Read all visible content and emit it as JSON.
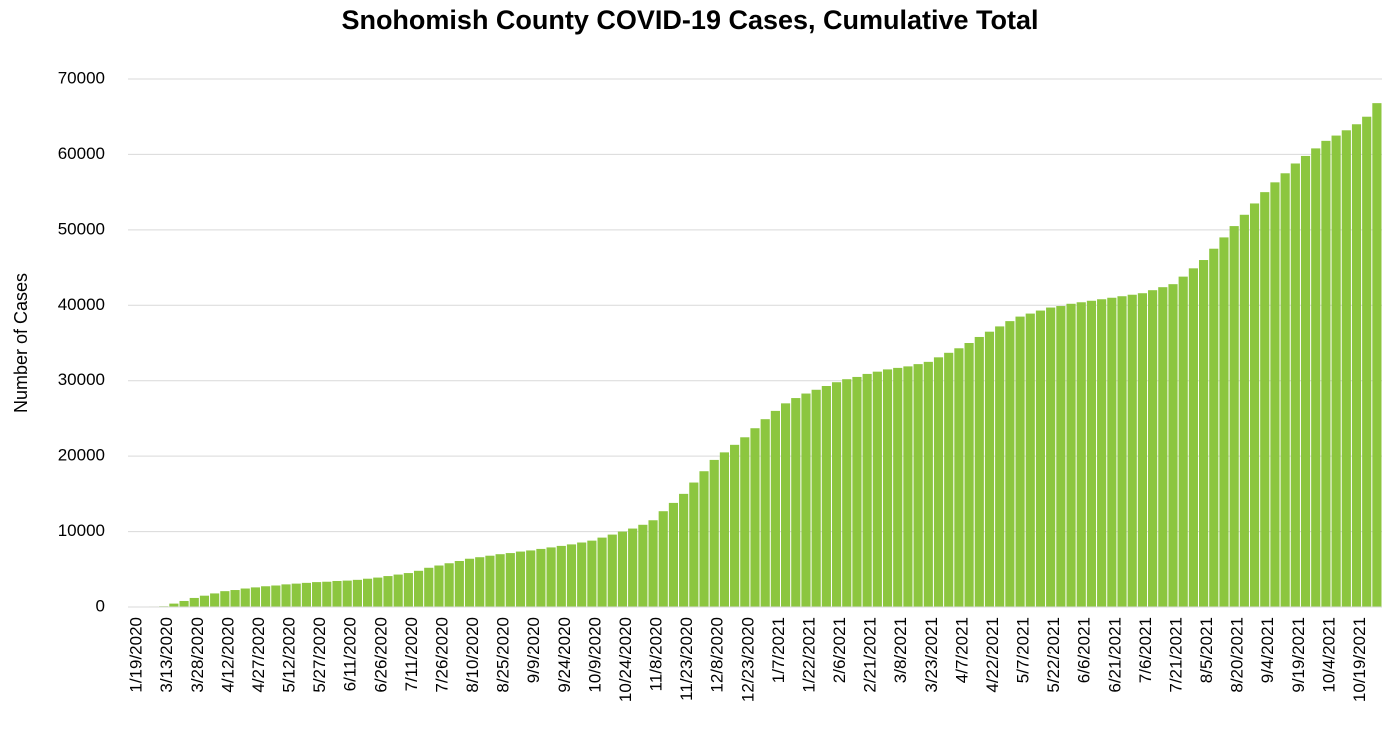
{
  "chart_data": {
    "type": "bar",
    "title": "Snohomish County COVID-19 Cases, Cumulative Total",
    "y_label": "Number of Cases",
    "color": "#8cc63f",
    "grid": true,
    "ylim": [
      0,
      70000
    ],
    "yticks": [
      0,
      10000,
      20000,
      30000,
      40000,
      50000,
      60000,
      70000
    ],
    "categories": [
      "1/19/2020",
      null,
      null,
      "3/13/2020",
      null,
      null,
      "3/28/2020",
      null,
      null,
      "4/12/2020",
      null,
      null,
      "4/27/2020",
      null,
      null,
      "5/12/2020",
      null,
      null,
      "5/27/2020",
      null,
      null,
      "6/11/2020",
      null,
      null,
      "6/26/2020",
      null,
      null,
      "7/11/2020",
      null,
      null,
      "7/26/2020",
      null,
      null,
      "8/10/2020",
      null,
      null,
      "8/25/2020",
      null,
      null,
      "9/9/2020",
      null,
      null,
      "9/24/2020",
      null,
      null,
      "10/9/2020",
      null,
      null,
      "10/24/2020",
      null,
      null,
      "11/8/2020",
      null,
      null,
      "11/23/2020",
      null,
      null,
      "12/8/2020",
      null,
      null,
      "12/23/2020",
      null,
      null,
      "1/7/2021",
      null,
      null,
      "1/22/2021",
      null,
      null,
      "2/6/2021",
      null,
      null,
      "2/21/2021",
      null,
      null,
      "3/8/2021",
      null,
      null,
      "3/23/2021",
      null,
      null,
      "4/7/2021",
      null,
      null,
      "4/22/2021",
      null,
      null,
      "5/7/2021",
      null,
      null,
      "5/22/2021",
      null,
      null,
      "6/6/2021",
      null,
      null,
      "6/21/2021",
      null,
      null,
      "7/6/2021",
      null,
      null,
      "7/21/2021",
      null,
      null,
      "8/5/2021",
      null,
      null,
      "8/20/2021",
      null,
      null,
      "9/4/2021",
      null,
      null,
      "9/19/2021",
      null,
      null,
      "10/4/2021",
      null,
      null,
      "10/19/2021",
      null,
      null
    ],
    "values": [
      0,
      30,
      70,
      100,
      450,
      800,
      1200,
      1500,
      1800,
      2100,
      2250,
      2450,
      2600,
      2750,
      2850,
      3000,
      3100,
      3200,
      3300,
      3350,
      3450,
      3500,
      3600,
      3750,
      3900,
      4100,
      4300,
      4500,
      4800,
      5200,
      5500,
      5800,
      6100,
      6400,
      6600,
      6800,
      7000,
      7150,
      7350,
      7500,
      7700,
      7900,
      8100,
      8300,
      8550,
      8800,
      9200,
      9600,
      10000,
      10400,
      10900,
      11500,
      12700,
      13800,
      15000,
      16500,
      18000,
      19500,
      20500,
      21500,
      22500,
      23700,
      24900,
      26000,
      27000,
      27700,
      28300,
      28800,
      29300,
      29800,
      30200,
      30500,
      30900,
      31200,
      31500,
      31700,
      31900,
      32200,
      32500,
      33100,
      33700,
      34300,
      35000,
      35800,
      36500,
      37200,
      37900,
      38500,
      38900,
      39300,
      39700,
      39900,
      40200,
      40400,
      40600,
      40800,
      41000,
      41200,
      41400,
      41600,
      42000,
      42400,
      42800,
      43800,
      44900,
      46000,
      47500,
      49000,
      50500,
      52000,
      53500,
      55000,
      56300,
      57500,
      58800,
      59800,
      60800,
      61800,
      62500,
      63200,
      64000,
      65000,
      66800
    ]
  }
}
